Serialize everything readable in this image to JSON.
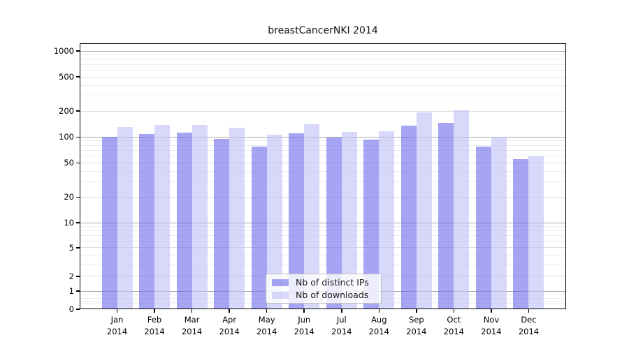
{
  "chart_data": {
    "type": "bar",
    "title": "breastCancerNKI 2014",
    "categories": [
      "Jan",
      "Feb",
      "Mar",
      "Apr",
      "May",
      "Jun",
      "Jul",
      "Aug",
      "Sep",
      "Oct",
      "Nov",
      "Dec"
    ],
    "year_label": "2014",
    "series": [
      {
        "name": "Nb of distinct IPs",
        "key": "distinct-ips",
        "color": "rgba(105,105,235,0.6)",
        "values": [
          100,
          109,
          113,
          95,
          78,
          110,
          99,
          94,
          136,
          146,
          78,
          55
        ]
      },
      {
        "name": "Nb of downloads",
        "key": "downloads",
        "color": "rgba(190,190,247,0.6)",
        "values": [
          130,
          139,
          137,
          128,
          106,
          141,
          115,
          116,
          194,
          206,
          100,
          60
        ]
      }
    ],
    "yscale": "pseudo-log (asinh, linear_width 2)",
    "ylim": [
      0,
      1230
    ],
    "yticks": [
      0,
      1,
      2,
      5,
      10,
      20,
      50,
      100,
      200,
      500,
      1000
    ],
    "major_grid_ticks": [
      1,
      10,
      100,
      1000
    ],
    "minor_yticks": [
      0.3,
      0.4,
      0.6,
      0.8,
      3,
      4,
      6,
      7,
      8,
      9,
      30,
      40,
      60,
      70,
      80,
      90,
      300,
      400,
      600,
      700,
      800,
      900
    ],
    "grid": "horizontal",
    "legend_position": "lower center",
    "colors": {
      "major_grid": "#a6a6a6",
      "secondary_grid": "#dcdcdc",
      "minor_grid": "#ededed",
      "axis": "#000000",
      "background": "#ffffff"
    }
  }
}
